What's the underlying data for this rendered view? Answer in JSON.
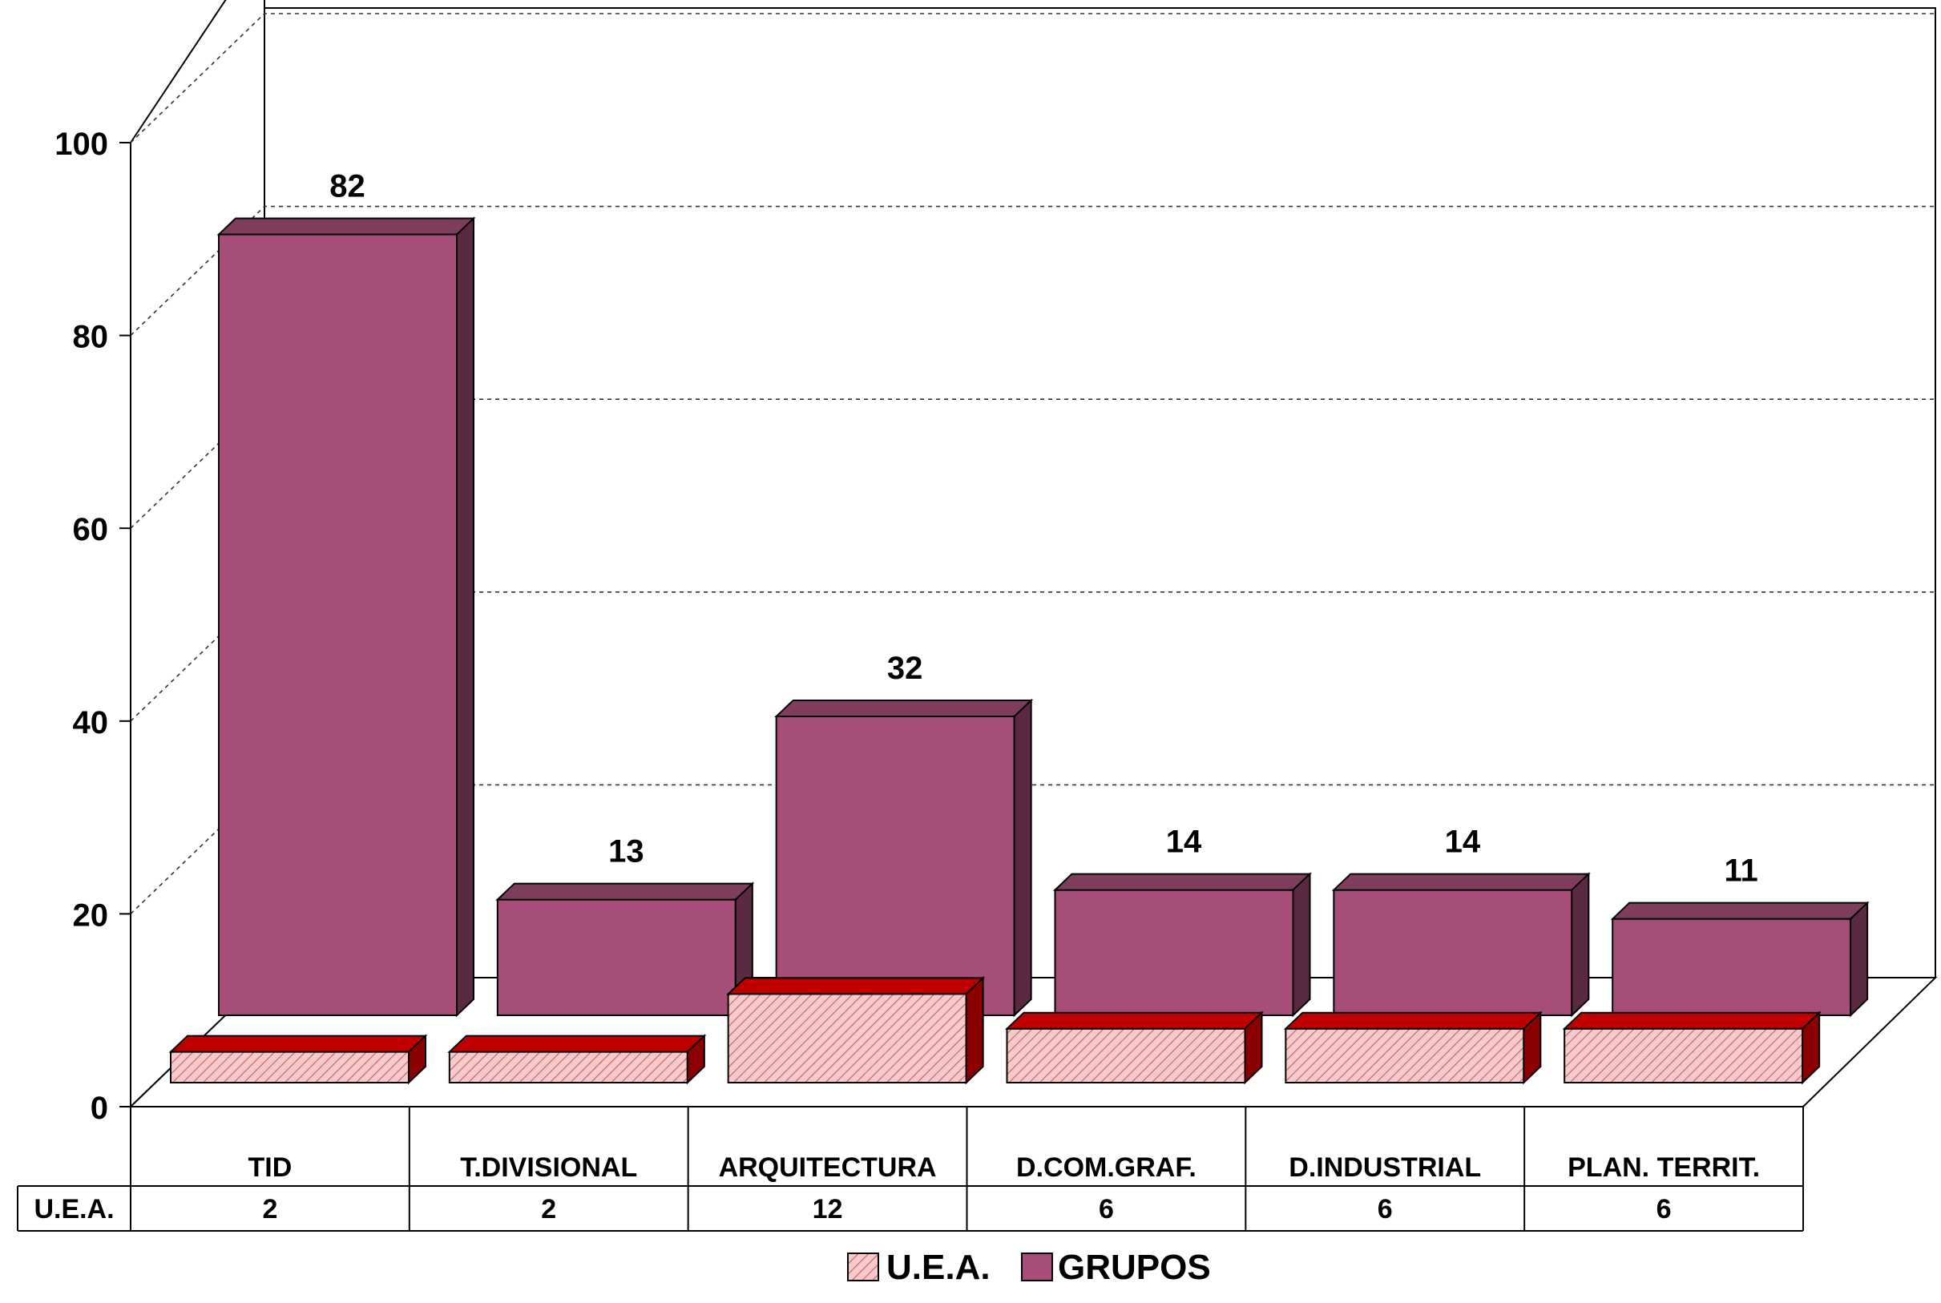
{
  "chart_data": {
    "type": "bar",
    "title": "",
    "xlabel": "",
    "ylabel": "",
    "ylim": [
      0,
      100
    ],
    "yticks": [
      0,
      20,
      40,
      60,
      80,
      100
    ],
    "categories": [
      "TID",
      "T.DIVISIONAL",
      "ARQUITECTURA",
      "D.COM.GRAF.",
      "D.INDUSTRIAL",
      "PLAN. TERRIT."
    ],
    "series": [
      {
        "name": "U.E.A.",
        "values": [
          2,
          2,
          12,
          6,
          6,
          6
        ],
        "color": "#c00000",
        "fill": "#f4c2c2",
        "pattern": "diagonal-hatch"
      },
      {
        "name": "GRUPOS",
        "values": [
          82,
          13,
          32,
          14,
          14,
          11
        ],
        "color": "#a64d79"
      }
    ],
    "data_labels": [
      "82",
      "13",
      "32",
      "14",
      "14",
      "11"
    ],
    "table": {
      "row_label": "U.E.A.",
      "values": [
        "2",
        "2",
        "12",
        "6",
        "6",
        "6"
      ]
    },
    "legend": {
      "position": "bottom",
      "items": [
        "U.E.A.",
        "GRUPOS"
      ]
    },
    "grid": true,
    "style": "3d-clustered-depth"
  }
}
